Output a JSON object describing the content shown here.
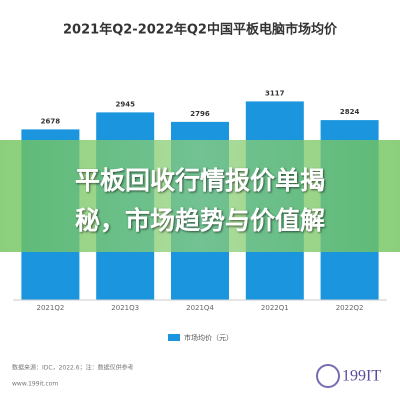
{
  "chart_data": {
    "type": "bar",
    "title": "2021年Q2-2022年Q2中国平板电脑市场均价",
    "categories": [
      "2021Q2",
      "2021Q3",
      "2021Q4",
      "2022Q1",
      "2022Q2"
    ],
    "series": [
      {
        "name": "市场均价（元）",
        "color": "#1b96de",
        "values": [
          2678,
          2945,
          2796,
          3117,
          2824
        ]
      }
    ]
  },
  "footer": {
    "source": "数据来源：IDC，2022.6；注：数据仅供参考",
    "website": "www.199it.com",
    "logo": "199IT"
  },
  "overlay": {
    "lines": [
      "平板回收行情报价单揭",
      "秘，市场趋势与价值解"
    ]
  }
}
